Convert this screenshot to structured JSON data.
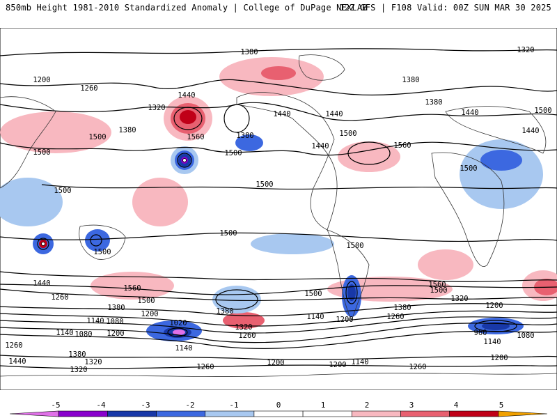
{
  "header": {
    "left": "850mb Height 1981-2010 Standardized Anomaly | College of DuPage NEXLAB",
    "right": "12Z GFS | F108 Valid: 00Z SUN MAR 30 2025"
  },
  "contour_labels": [
    {
      "text": "1380"
    },
    {
      "text": "1320"
    },
    {
      "text": "1200"
    },
    {
      "text": "1260"
    },
    {
      "text": "1440"
    },
    {
      "text": "1320"
    },
    {
      "text": "1380"
    },
    {
      "text": "1560"
    },
    {
      "text": "1380"
    },
    {
      "text": "1500"
    },
    {
      "text": "1500"
    },
    {
      "text": "1500"
    },
    {
      "text": "1500"
    },
    {
      "text": "1440"
    },
    {
      "text": "1440"
    },
    {
      "text": "1500"
    },
    {
      "text": "1440"
    },
    {
      "text": "1560"
    },
    {
      "text": "1380"
    },
    {
      "text": "1380"
    },
    {
      "text": "1440"
    },
    {
      "text": "1500"
    },
    {
      "text": "1440"
    },
    {
      "text": "1500"
    },
    {
      "text": "1500"
    },
    {
      "text": "1500"
    },
    {
      "text": "1500"
    },
    {
      "text": "1500"
    },
    {
      "text": "1560"
    },
    {
      "text": "1440"
    },
    {
      "text": "1260"
    },
    {
      "text": "1500"
    },
    {
      "text": "1380"
    },
    {
      "text": "1380"
    },
    {
      "text": "1200"
    },
    {
      "text": "1140"
    },
    {
      "text": "1080"
    },
    {
      "text": "1020"
    },
    {
      "text": "1140"
    },
    {
      "text": "1080"
    },
    {
      "text": "1200"
    },
    {
      "text": "1140"
    },
    {
      "text": "1320"
    },
    {
      "text": "1260"
    },
    {
      "text": "1140"
    },
    {
      "text": "1200"
    },
    {
      "text": "1260"
    },
    {
      "text": "1380"
    },
    {
      "text": "1500"
    },
    {
      "text": "1560"
    },
    {
      "text": "1500"
    },
    {
      "text": "1320"
    },
    {
      "text": "1200"
    },
    {
      "text": "960"
    },
    {
      "text": "1080"
    },
    {
      "text": "1140"
    },
    {
      "text": "1200"
    },
    {
      "text": "1260"
    },
    {
      "text": "1440"
    },
    {
      "text": "1380"
    },
    {
      "text": "1320"
    },
    {
      "text": "1320"
    },
    {
      "text": "1260"
    },
    {
      "text": "1200"
    },
    {
      "text": "1200"
    },
    {
      "text": "1140"
    },
    {
      "text": "1260"
    }
  ],
  "anomaly_features": [
    {
      "sign": "positive",
      "level": 3
    },
    {
      "sign": "positive",
      "level": 2
    },
    {
      "sign": "positive",
      "level": 1
    },
    {
      "sign": "negative",
      "level": -5
    },
    {
      "sign": "negative",
      "level": -4
    },
    {
      "sign": "negative",
      "level": -2
    },
    {
      "sign": "negative",
      "level": -3
    },
    {
      "sign": "negative",
      "level": -1
    },
    {
      "sign": "positive",
      "level": 1
    }
  ],
  "legend": {
    "ticks": [
      "-5",
      "-4",
      "-3",
      "-2",
      "-1",
      "0",
      "1",
      "2",
      "3",
      "4",
      "5"
    ],
    "colors": [
      "#e070e8",
      "#8800cc",
      "#1838a8",
      "#3c68e0",
      "#a8c8f0",
      "#ffffff",
      "#ffffff",
      "#f8b8c0",
      "#e86070",
      "#c00018",
      "#f0a000"
    ]
  }
}
